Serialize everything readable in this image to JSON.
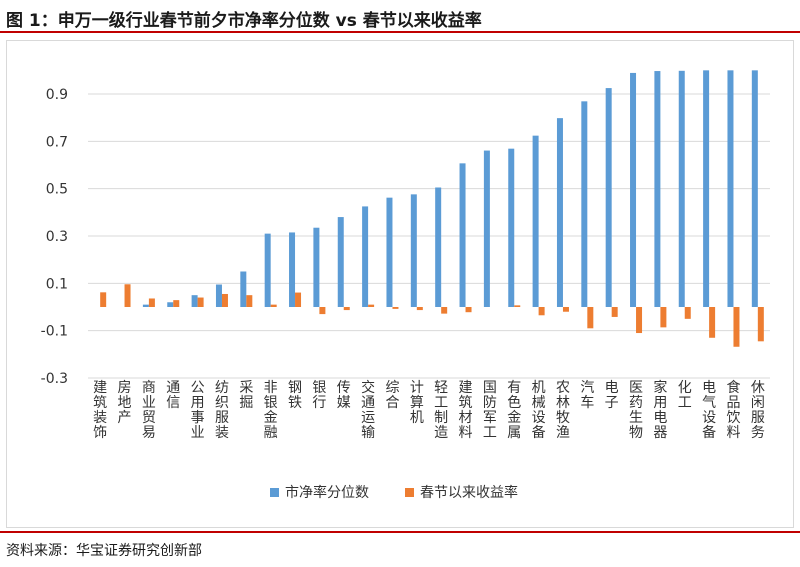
{
  "title": "图 1：申万一级行业春节前夕市净率分位数 vs 春节以来收益率",
  "source": "资料来源：华宝证券研究创新部",
  "colors": {
    "accent_rule": "#c00000",
    "series1": "#5b9bd5",
    "series2": "#ed7d31",
    "grid": "#d9d9d9"
  },
  "chart_data": {
    "type": "bar",
    "categories": [
      "建筑装饰",
      "房地产",
      "商业贸易",
      "通信",
      "公用事业",
      "纺织服装",
      "采掘",
      "非银金融",
      "钢铁",
      "银行",
      "传媒",
      "交通运输",
      "综合",
      "计算机",
      "轻工制造",
      "建筑材料",
      "国防军工",
      "有色金属",
      "机械设备",
      "农林牧渔",
      "汽车",
      "电子",
      "医药生物",
      "家用电器",
      "化工",
      "电气设备",
      "食品饮料",
      "休闲服务"
    ],
    "series": [
      {
        "name": "市净率分位数",
        "color": "#5b9bd5",
        "values": [
          0.0,
          0.0,
          0.01,
          0.02,
          0.05,
          0.095,
          0.15,
          0.31,
          0.315,
          0.335,
          0.38,
          0.425,
          0.462,
          0.476,
          0.505,
          0.607,
          0.661,
          0.669,
          0.724,
          0.798,
          0.869,
          0.925,
          0.989,
          0.997,
          0.998,
          1.0,
          1.0,
          1.0
        ]
      },
      {
        "name": "春节以来收益率",
        "color": "#ed7d31",
        "values": [
          0.062,
          0.096,
          0.036,
          0.029,
          0.04,
          0.055,
          0.05,
          0.01,
          0.061,
          -0.03,
          -0.013,
          0.01,
          -0.008,
          -0.013,
          -0.028,
          -0.022,
          0.0,
          0.007,
          -0.035,
          -0.02,
          -0.09,
          -0.042,
          -0.11,
          -0.086,
          -0.05,
          -0.13,
          -0.168,
          -0.145
        ]
      }
    ],
    "yticks": [
      "-0.3",
      "-0.1",
      "0.1",
      "0.3",
      "0.5",
      "0.7",
      "0.9"
    ],
    "ylim": [
      -0.3,
      1.05
    ],
    "grid": true,
    "legend_position": "bottom"
  }
}
